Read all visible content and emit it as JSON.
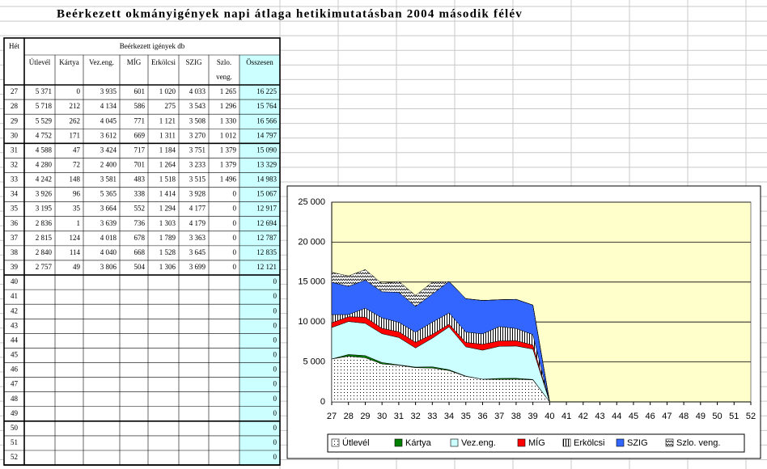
{
  "title": "Beérkezett okmányigények napi átlaga hetikimutatásban 2004 második félév",
  "table": {
    "week_header": "Hét",
    "group_header": "Beérkezett igények db",
    "columns": [
      "Útlevél",
      "Kártya",
      "Vez.eng.",
      "MÍG",
      "Erkölcsi",
      "SZIG",
      "Szlo. veng.",
      "Összesen"
    ],
    "rows": [
      [
        "27",
        "5 371",
        "0",
        "3 935",
        "601",
        "1 020",
        "4 033",
        "1 265",
        "16 225"
      ],
      [
        "28",
        "5 718",
        "212",
        "4 134",
        "586",
        "275",
        "3 543",
        "1 296",
        "15 764"
      ],
      [
        "29",
        "5 529",
        "262",
        "4 045",
        "771",
        "1 121",
        "3 508",
        "1 330",
        "16 566"
      ],
      [
        "30",
        "4 752",
        "171",
        "3 612",
        "669",
        "1 311",
        "3 270",
        "1 012",
        "14 797"
      ],
      [
        "31",
        "4 588",
        "47",
        "3 424",
        "717",
        "1 184",
        "3 751",
        "1 379",
        "15 090"
      ],
      [
        "32",
        "4 280",
        "72",
        "2 400",
        "701",
        "1 264",
        "3 233",
        "1 379",
        "13 329"
      ],
      [
        "33",
        "4 242",
        "148",
        "3 581",
        "483",
        "1 518",
        "3 515",
        "1 496",
        "14 983"
      ],
      [
        "34",
        "3 926",
        "96",
        "5 365",
        "338",
        "1 414",
        "3 928",
        "0",
        "15 067"
      ],
      [
        "35",
        "3 195",
        "35",
        "3 664",
        "552",
        "1 294",
        "4 177",
        "0",
        "12 917"
      ],
      [
        "36",
        "2 836",
        "1",
        "3 639",
        "736",
        "1 303",
        "4 179",
        "0",
        "12 694"
      ],
      [
        "37",
        "2 815",
        "124",
        "4 018",
        "678",
        "1 789",
        "3 363",
        "0",
        "12 787"
      ],
      [
        "38",
        "2 840",
        "114",
        "4 040",
        "668",
        "1 528",
        "3 645",
        "0",
        "12 835"
      ],
      [
        "39",
        "2 757",
        "49",
        "3 806",
        "504",
        "1 306",
        "3 699",
        "0",
        "12 121"
      ],
      [
        "40",
        null,
        null,
        null,
        null,
        null,
        null,
        null,
        "0"
      ],
      [
        "41",
        null,
        null,
        null,
        null,
        null,
        null,
        null,
        "0"
      ],
      [
        "42",
        null,
        null,
        null,
        null,
        null,
        null,
        null,
        "0"
      ],
      [
        "43",
        null,
        null,
        null,
        null,
        null,
        null,
        null,
        "0"
      ],
      [
        "44",
        null,
        null,
        null,
        null,
        null,
        null,
        null,
        "0"
      ],
      [
        "45",
        null,
        null,
        null,
        null,
        null,
        null,
        null,
        "0"
      ],
      [
        "46",
        null,
        null,
        null,
        null,
        null,
        null,
        null,
        "0"
      ],
      [
        "47",
        null,
        null,
        null,
        null,
        null,
        null,
        null,
        "0"
      ],
      [
        "48",
        null,
        null,
        null,
        null,
        null,
        null,
        null,
        "0"
      ],
      [
        "49",
        null,
        null,
        null,
        null,
        null,
        null,
        null,
        "0"
      ],
      [
        "50",
        null,
        null,
        null,
        null,
        null,
        null,
        null,
        "0"
      ],
      [
        "51",
        null,
        null,
        null,
        null,
        null,
        null,
        null,
        "0"
      ],
      [
        "52",
        null,
        null,
        null,
        null,
        null,
        null,
        null,
        "0"
      ]
    ]
  },
  "chart_data": {
    "type": "stacked_area",
    "categories": [
      "27",
      "28",
      "29",
      "30",
      "31",
      "32",
      "33",
      "34",
      "35",
      "36",
      "37",
      "38",
      "39",
      "40",
      "41",
      "42",
      "43",
      "44",
      "45",
      "46",
      "47",
      "48",
      "49",
      "50",
      "51",
      "52"
    ],
    "ylim": [
      0,
      25000
    ],
    "yticks": [
      0,
      {
        "value": 5000,
        "label": "5 000"
      },
      {
        "value": 10000,
        "label": "10 000"
      },
      {
        "value": 15000,
        "label": "15 000"
      },
      {
        "value": 20000,
        "label": "20 000"
      },
      {
        "value": 25000,
        "label": "25 000"
      }
    ],
    "grid": true,
    "background": "#ffffcc",
    "legend": "bottom",
    "series": [
      {
        "name": "Útlevél",
        "color": "#ffffff",
        "pattern": "dots",
        "values": [
          5371,
          5718,
          5529,
          4752,
          4588,
          4280,
          4242,
          3926,
          3195,
          2836,
          2815,
          2840,
          2757,
          0,
          null,
          null,
          null,
          null,
          null,
          null,
          null,
          null,
          null,
          null,
          null,
          null
        ]
      },
      {
        "name": "Kártya",
        "color": "#008000",
        "values": [
          0,
          212,
          262,
          171,
          47,
          72,
          148,
          96,
          35,
          1,
          124,
          114,
          49,
          0,
          null,
          null,
          null,
          null,
          null,
          null,
          null,
          null,
          null,
          null,
          null,
          null
        ]
      },
      {
        "name": "Vez.eng.",
        "color": "#ccffff",
        "values": [
          3935,
          4134,
          4045,
          3612,
          3424,
          2400,
          3581,
          5365,
          3664,
          3639,
          4018,
          4040,
          3806,
          0,
          null,
          null,
          null,
          null,
          null,
          null,
          null,
          null,
          null,
          null,
          null,
          null
        ]
      },
      {
        "name": "MÍG",
        "color": "#ff0000",
        "values": [
          601,
          586,
          771,
          669,
          717,
          701,
          483,
          338,
          552,
          736,
          678,
          668,
          504,
          0,
          null,
          null,
          null,
          null,
          null,
          null,
          null,
          null,
          null,
          null,
          null,
          null
        ]
      },
      {
        "name": "Erkölcsi",
        "color": "#ffffff",
        "pattern": "vstripes",
        "values": [
          1020,
          275,
          1121,
          1311,
          1184,
          1264,
          1518,
          1414,
          1294,
          1303,
          1789,
          1528,
          1306,
          0,
          null,
          null,
          null,
          null,
          null,
          null,
          null,
          null,
          null,
          null,
          null,
          null
        ]
      },
      {
        "name": "SZIG",
        "color": "#3366ff",
        "values": [
          4033,
          3543,
          3508,
          3270,
          3751,
          3233,
          3515,
          3928,
          4177,
          4179,
          3363,
          3645,
          3699,
          0,
          null,
          null,
          null,
          null,
          null,
          null,
          null,
          null,
          null,
          null,
          null,
          null
        ]
      },
      {
        "name": "Szlo. veng.",
        "color": "#ffffff",
        "pattern": "zigzag",
        "values": [
          1265,
          1296,
          1330,
          1012,
          1379,
          1379,
          1496,
          0,
          0,
          0,
          0,
          0,
          0,
          0,
          null,
          null,
          null,
          null,
          null,
          null,
          null,
          null,
          null,
          null,
          null,
          null
        ]
      }
    ]
  }
}
